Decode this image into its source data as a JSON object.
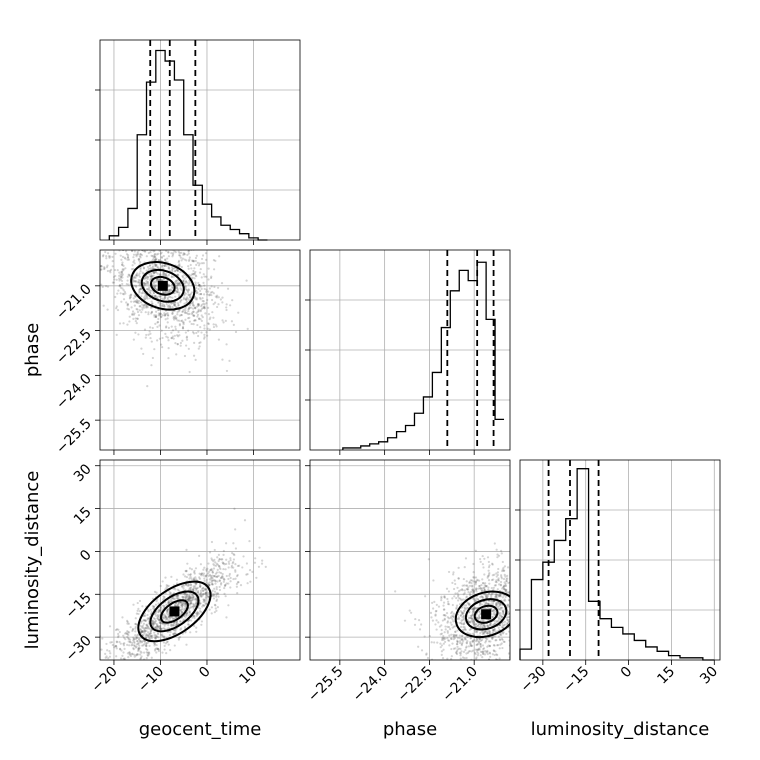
{
  "chart_data": {
    "type": "corner",
    "parameters": [
      {
        "name": "geocent_time",
        "label": "geocent_time",
        "range": [
          -23,
          20
        ],
        "ticks": [
          -20,
          -10,
          0,
          10
        ],
        "tick_labels": [
          "−20",
          "−10",
          "0",
          "10"
        ],
        "quantiles": [
          -12.2,
          -8.0,
          -2.5
        ],
        "histogram": {
          "bin_edges": [
            -21,
            -19,
            -17,
            -15,
            -13,
            -11,
            -9,
            -7,
            -5,
            -3,
            -1,
            1,
            3,
            5,
            7,
            9,
            11,
            13
          ],
          "counts": [
            2,
            6,
            15,
            50,
            75,
            90,
            85,
            76,
            50,
            26,
            17,
            11,
            7,
            5,
            3,
            1,
            0
          ],
          "ylim": [
            0,
            95
          ]
        }
      },
      {
        "name": "phase",
        "label": "phase",
        "range": [
          -26.5,
          -19.8
        ],
        "ticks": [
          -25.5,
          -24.0,
          -22.5,
          -21.0
        ],
        "tick_labels": [
          "−25.5",
          "−24.0",
          "−22.5",
          "−21.0"
        ],
        "quantiles": [
          -21.9,
          -20.9,
          -20.35
        ],
        "histogram": {
          "bin_edges": [
            -25.4,
            -25.1,
            -24.8,
            -24.5,
            -24.2,
            -23.9,
            -23.6,
            -23.3,
            -23.0,
            -22.7,
            -22.4,
            -22.1,
            -21.8,
            -21.5,
            -21.2,
            -20.9,
            -20.6,
            -20.3,
            -20.0
          ],
          "counts": [
            1,
            1,
            2,
            3,
            4,
            6,
            9,
            12,
            18,
            26,
            38,
            60,
            78,
            88,
            83,
            92,
            64,
            15
          ],
          "ylim": [
            0,
            98
          ]
        }
      },
      {
        "name": "luminosity_distance",
        "label": "luminosity_distance",
        "range": [
          -38,
          32
        ],
        "ticks": [
          -30,
          -15,
          0,
          15,
          30
        ],
        "tick_labels": [
          "−30",
          "−15",
          "0",
          "15",
          "30"
        ],
        "quantiles": [
          -28,
          -20.5,
          -10.5
        ],
        "histogram": {
          "bin_edges": [
            -38,
            -34,
            -30,
            -26,
            -22,
            -18,
            -14,
            -10,
            -6,
            -2,
            2,
            6,
            10,
            14,
            18,
            22,
            26,
            30
          ],
          "counts": [
            5,
            37,
            45,
            55,
            65,
            88,
            27,
            19,
            15,
            12,
            9,
            6,
            4,
            2,
            1,
            1,
            0
          ],
          "ylim": [
            0,
            92
          ]
        }
      }
    ],
    "densities": [
      {
        "x": "geocent_time",
        "y": "phase",
        "peak": [
          -9.5,
          -21.0
        ],
        "spread": [
          5.0,
          0.75
        ],
        "correlation": -0.35,
        "scatter_extent": {
          "x": [
            -22,
            18
          ],
          "y": [
            -26.0,
            -19.8
          ]
        }
      },
      {
        "x": "geocent_time",
        "y": "luminosity_distance",
        "peak": [
          -7.0,
          -21.0
        ],
        "spread": [
          5.5,
          7.5
        ],
        "correlation": 0.85,
        "scatter_extent": {
          "x": [
            -22,
            18
          ],
          "y": [
            -36,
            28
          ]
        }
      },
      {
        "x": "phase",
        "y": "luminosity_distance",
        "peak": [
          -20.6,
          -22.0
        ],
        "spread": [
          0.75,
          7.5
        ],
        "correlation": 0.35,
        "scatter_extent": {
          "x": [
            -26.3,
            -19.8
          ],
          "y": [
            -36,
            22
          ]
        }
      }
    ],
    "grid": true
  }
}
